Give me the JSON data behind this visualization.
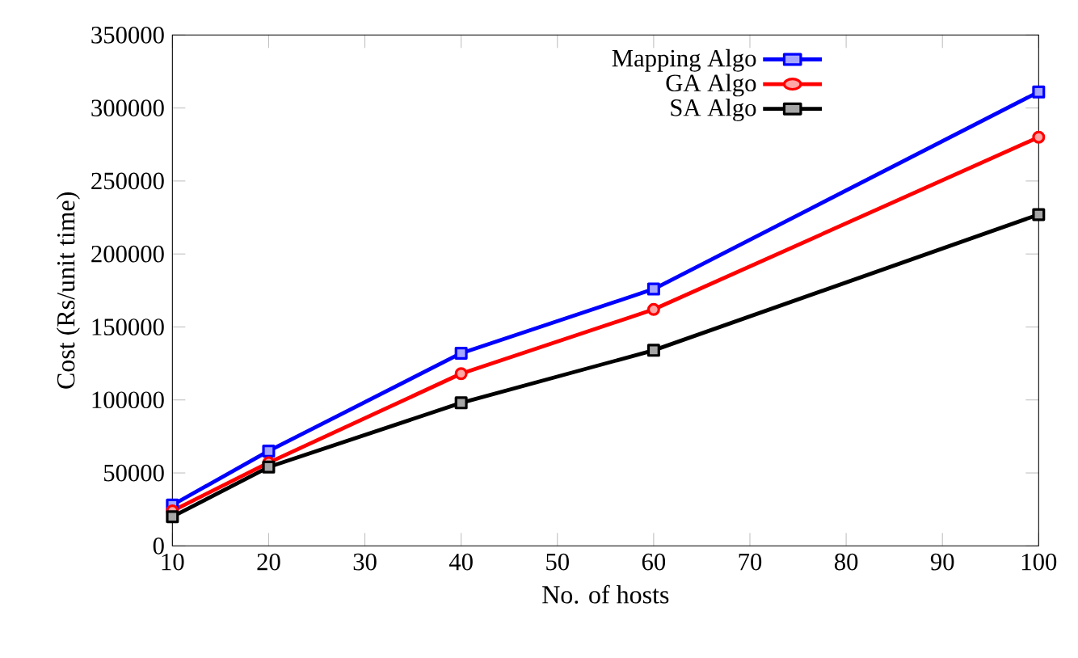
{
  "chart_data": {
    "type": "line",
    "xlabel": "No. of hosts",
    "ylabel": "Cost (Rs/unit time)",
    "x": [
      10,
      20,
      40,
      60,
      100
    ],
    "series": [
      {
        "name": "Mapping Algo",
        "color": "#0000ff",
        "marker": "square",
        "values": [
          28000,
          65000,
          132000,
          176000,
          311000
        ]
      },
      {
        "name": "GA Algo",
        "color": "#ff0000",
        "marker": "circle",
        "values": [
          24000,
          57000,
          118000,
          162000,
          280000
        ]
      },
      {
        "name": "SA Algo",
        "color": "#000000",
        "marker": "square",
        "values": [
          20000,
          54000,
          98000,
          134000,
          227000
        ]
      }
    ],
    "xlim": [
      10,
      100
    ],
    "xticks": [
      10,
      20,
      30,
      40,
      50,
      60,
      70,
      80,
      90,
      100
    ],
    "ylim": [
      0,
      350000
    ],
    "yticks": [
      0,
      50000,
      100000,
      150000,
      200000,
      250000,
      300000,
      350000
    ],
    "grid": false,
    "legend": "top right",
    "line_style": "solid"
  }
}
